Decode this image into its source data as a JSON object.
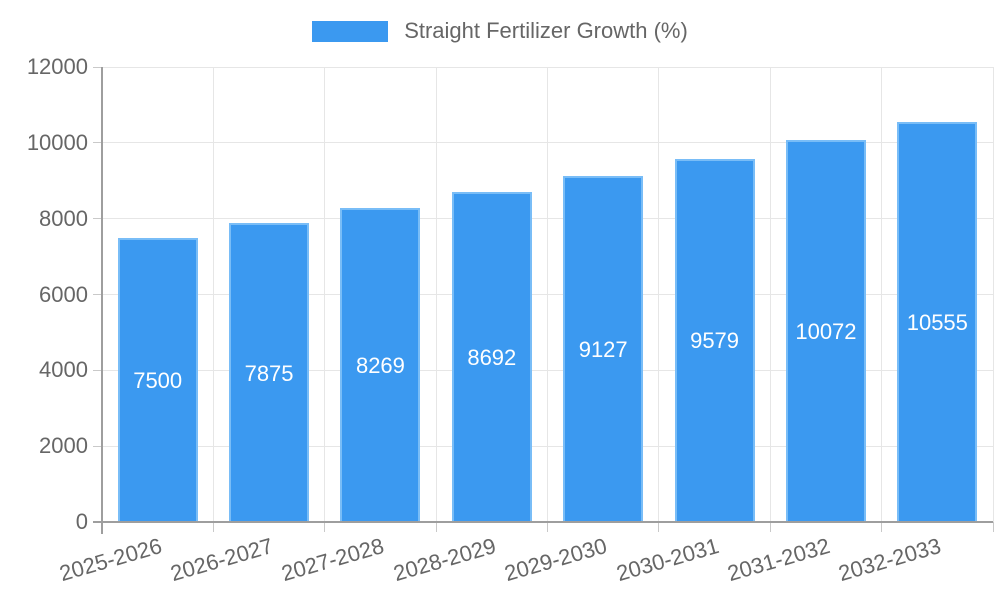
{
  "legend": {
    "position": "top",
    "label": "Straight Fertilizer Growth (%)"
  },
  "chart_data": {
    "type": "bar",
    "title": "Straight Fertilizer Growth (%)",
    "categories": [
      "2025-2026",
      "2026-2027",
      "2027-2028",
      "2028-2029",
      "2029-2030",
      "2030-2031",
      "2031-2032",
      "2032-2033"
    ],
    "series": [
      {
        "name": "Straight Fertilizer Growth (%)",
        "values": [
          7500,
          7875,
          8269,
          8692,
          9127,
          9579,
          10072,
          10555
        ]
      }
    ],
    "value_labels": [
      7500,
      7875,
      8269,
      8692,
      9127,
      9579,
      10072,
      10555
    ],
    "xlabel": "",
    "ylabel": "",
    "ylim": [
      0,
      12000
    ],
    "ytick_step": 2000,
    "yticks": [
      0,
      2000,
      4000,
      6000,
      8000,
      10000,
      12000
    ],
    "grid": true,
    "legend_position": "top-center",
    "value_label_position": "inside-center",
    "x_label_rotation_deg": -16,
    "colors": {
      "bar": "#3b99f0",
      "bar_border": "#79bdf7",
      "value_text": "#ffffff",
      "axis_text": "#666666",
      "grid_line": "#e6e6e6",
      "axis_line": "#9e9e9e",
      "tick_mark": "#c9c9c9"
    }
  }
}
